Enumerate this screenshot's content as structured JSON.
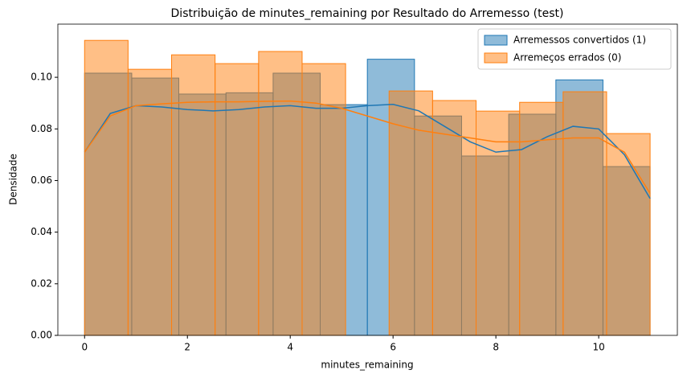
{
  "chart_data": {
    "type": "histogram",
    "title": "Distribuição de minutes_remaining por Resultado do Arremesso (test)",
    "x_label": "minutes_remaining",
    "y_label": "Densidade",
    "xlim": [
      -0.52,
      11.53
    ],
    "ylim": [
      0,
      0.1206
    ],
    "xticks": [
      0,
      2,
      4,
      6,
      8,
      10
    ],
    "yticks": [
      {
        "value": 0,
        "label": "0.00"
      },
      {
        "value": 0.02,
        "label": "0.02"
      },
      {
        "value": 0.04,
        "label": "0.04"
      },
      {
        "value": 0.06,
        "label": "0.06"
      },
      {
        "value": 0.08,
        "label": "0.08"
      },
      {
        "value": 0.1,
        "label": "0.10"
      }
    ],
    "legend": "upper right",
    "series": [
      {
        "name": "Arremessos convertidos (1)",
        "color": "#1f77b4",
        "bins": [
          0,
          0.917,
          1.833,
          2.75,
          3.667,
          4.583,
          5.5,
          6.417,
          7.333,
          8.25,
          9.167,
          10.083,
          11
        ],
        "values": [
          0.1016,
          0.0997,
          0.0935,
          0.094,
          0.1016,
          0.0894,
          0.107,
          0.085,
          0.0695,
          0.0857,
          0.099,
          0.0654
        ],
        "kde_x": [
          0,
          0.5,
          1,
          1.5,
          2,
          2.5,
          3,
          3.5,
          4,
          4.5,
          5,
          5.5,
          6,
          6.5,
          7,
          7.5,
          8,
          8.5,
          9,
          9.5,
          10,
          10.5,
          11
        ],
        "kde_y": [
          0.071,
          0.086,
          0.089,
          0.0885,
          0.0875,
          0.087,
          0.0875,
          0.0885,
          0.089,
          0.088,
          0.088,
          0.089,
          0.0895,
          0.087,
          0.081,
          0.075,
          0.071,
          0.072,
          0.077,
          0.081,
          0.08,
          0.07,
          0.053
        ]
      },
      {
        "name": "Arremeços errados (0)",
        "color": "#ff7f0e",
        "bins": [
          0,
          0.846,
          1.692,
          2.538,
          3.385,
          4.231,
          5.077,
          5.923,
          6.769,
          7.615,
          8.462,
          9.308,
          10.154,
          11
        ],
        "values": [
          0.1143,
          0.1031,
          0.1087,
          0.1053,
          0.11,
          0.1053,
          0,
          0.0947,
          0.091,
          0.0869,
          0.0903,
          0.0944,
          0.0782
        ],
        "kde_x": [
          0,
          0.5,
          1,
          1.5,
          2,
          2.5,
          3,
          3.5,
          4,
          4.5,
          5,
          5.5,
          6,
          6.5,
          7,
          7.5,
          8,
          8.5,
          9,
          9.5,
          10,
          10.5,
          11
        ],
        "kde_y": [
          0.071,
          0.085,
          0.089,
          0.0897,
          0.0903,
          0.0905,
          0.0905,
          0.0907,
          0.0908,
          0.09,
          0.088,
          0.085,
          0.082,
          0.0795,
          0.078,
          0.0765,
          0.075,
          0.075,
          0.0758,
          0.0765,
          0.0765,
          0.071,
          0.055
        ]
      }
    ]
  }
}
